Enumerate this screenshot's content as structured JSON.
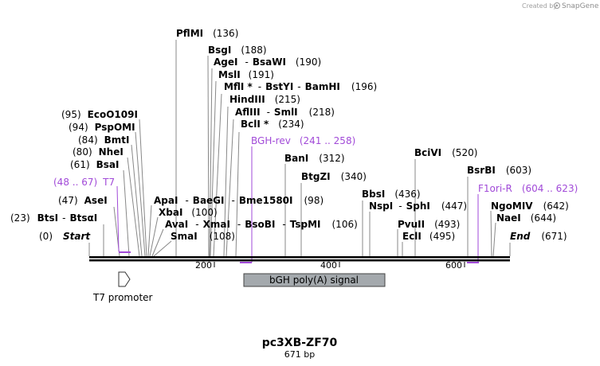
{
  "header": {
    "credit_prefix": "Created by",
    "brand": "SnapGene"
  },
  "plasmid": {
    "name": "pc3XB-ZF70",
    "length_label": "671 bp"
  },
  "ruler": {
    "ticks": [
      "200",
      "400",
      "600"
    ]
  },
  "sites": {
    "start": {
      "pos": "(0)",
      "name": "Start"
    },
    "end": {
      "name": "End",
      "pos": "(671)"
    },
    "btsi": {
      "pos": "(23)",
      "name": "BtsI",
      "sep": "-",
      "name2": "BtsαI"
    },
    "asei": {
      "pos": "(47)",
      "name": "AseI"
    },
    "bsai": {
      "pos": "(61)",
      "name": "BsaI"
    },
    "nhei": {
      "pos": "(80)",
      "name": "NheI"
    },
    "bmti": {
      "pos": "(84)",
      "name": "BmtI"
    },
    "pspomi": {
      "pos": "(94)",
      "name": "PspOMI"
    },
    "eco": {
      "pos": "(95)",
      "name": "EcoO109I"
    },
    "pfimi": {
      "name": "PflMI",
      "pos": "(136)"
    },
    "bsgi": {
      "name": "BsgI",
      "pos": "(188)"
    },
    "agei": {
      "name": "AgeI",
      "sep": "-",
      "name2": "BsaWI",
      "pos": "(190)"
    },
    "msli": {
      "name": "MslI",
      "pos": "(191)"
    },
    "mfli": {
      "name": "MflI *",
      "sep": "-",
      "name2": "BstYI",
      "sep2": "-",
      "name3": "BamHI",
      "pos": "(196)"
    },
    "hind": {
      "name": "HindIII",
      "pos": "(215)"
    },
    "afl": {
      "name": "AflIII",
      "sep": "-",
      "name2": "SmlI",
      "pos": "(218)"
    },
    "bcli": {
      "name": "BclI *",
      "pos": "(234)"
    },
    "apai": {
      "name": "ApaI",
      "sep": "-",
      "name2": "BaeGI",
      "sep2": "-",
      "name3": "Bme1580I",
      "pos": "(98)"
    },
    "xbai": {
      "name": "XbaI",
      "pos": "(100)"
    },
    "avai": {
      "name": "AvaI",
      "sep": "-",
      "name2": "XmaI",
      "sep2": "-",
      "name3": "BsoBI",
      "sep3": "-",
      "name4": "TspMI",
      "pos": "(106)"
    },
    "smai": {
      "name": "SmaI",
      "pos": "(108)"
    },
    "bani": {
      "name": "BanI",
      "pos": "(312)"
    },
    "btgzi": {
      "name": "BtgZI",
      "pos": "(340)"
    },
    "bbsi": {
      "name": "BbsI",
      "pos": "(436)"
    },
    "nspi": {
      "name": "NspI",
      "sep": "-",
      "name2": "SphI",
      "pos": "(447)"
    },
    "pvuii": {
      "name": "PvuII",
      "pos": "(493)"
    },
    "ecli": {
      "name": "EclI",
      "pos": "(495)"
    },
    "bcivi": {
      "name": "BciVI",
      "pos": "(520)"
    },
    "bsrbi": {
      "name": "BsrBI",
      "pos": "(603)"
    },
    "ngomiv": {
      "name": "NgoMIV",
      "pos": "(642)"
    },
    "naei": {
      "name": "NaeI",
      "pos": "(644)"
    }
  },
  "primers": {
    "t7": {
      "range": "(48 .. 67)",
      "name": "T7"
    },
    "bgh_rev": {
      "name": "BGH-rev",
      "range": "(241 .. 258)"
    },
    "f1ori_r": {
      "name": "F1ori-R",
      "range": "(604 .. 623)"
    }
  },
  "features": {
    "t7_promoter": {
      "label": "T7 promoter"
    },
    "bgh": {
      "label": "bGH poly(A) signal"
    }
  },
  "colors": {
    "primer": "#a14ad8",
    "feature_fill": "#a4a9ad",
    "leader": "#888888"
  }
}
